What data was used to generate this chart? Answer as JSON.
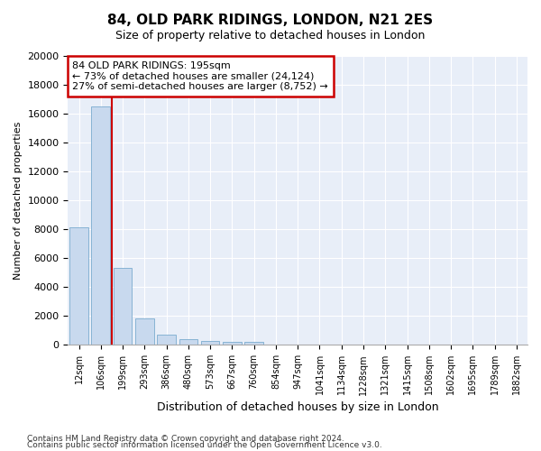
{
  "title": "84, OLD PARK RIDINGS, LONDON, N21 2ES",
  "subtitle": "Size of property relative to detached houses in London",
  "xlabel": "Distribution of detached houses by size in London",
  "ylabel": "Number of detached properties",
  "categories": [
    "12sqm",
    "106sqm",
    "199sqm",
    "293sqm",
    "386sqm",
    "480sqm",
    "573sqm",
    "667sqm",
    "760sqm",
    "854sqm",
    "947sqm",
    "1041sqm",
    "1134sqm",
    "1228sqm",
    "1321sqm",
    "1415sqm",
    "1508sqm",
    "1602sqm",
    "1695sqm",
    "1789sqm",
    "1882sqm"
  ],
  "values": [
    8100,
    16500,
    5300,
    1850,
    700,
    370,
    280,
    210,
    210,
    0,
    0,
    0,
    0,
    0,
    0,
    0,
    0,
    0,
    0,
    0,
    0
  ],
  "bar_color": "#c8d9ee",
  "bar_edge_color": "#7aabcf",
  "vline_color": "#cc0000",
  "vline_x": 1.5,
  "annotation_text": "84 OLD PARK RIDINGS: 195sqm\n← 73% of detached houses are smaller (24,124)\n27% of semi-detached houses are larger (8,752) →",
  "annotation_box_color": "#cc0000",
  "ylim": [
    0,
    20000
  ],
  "yticks": [
    0,
    2000,
    4000,
    6000,
    8000,
    10000,
    12000,
    14000,
    16000,
    18000,
    20000
  ],
  "footer_line1": "Contains HM Land Registry data © Crown copyright and database right 2024.",
  "footer_line2": "Contains public sector information licensed under the Open Government Licence v3.0.",
  "bg_color": "#ffffff",
  "plot_bg_color": "#e8eef8",
  "grid_color": "#ffffff",
  "title_fontsize": 11,
  "subtitle_fontsize": 9,
  "ylabel_fontsize": 8,
  "xlabel_fontsize": 9
}
